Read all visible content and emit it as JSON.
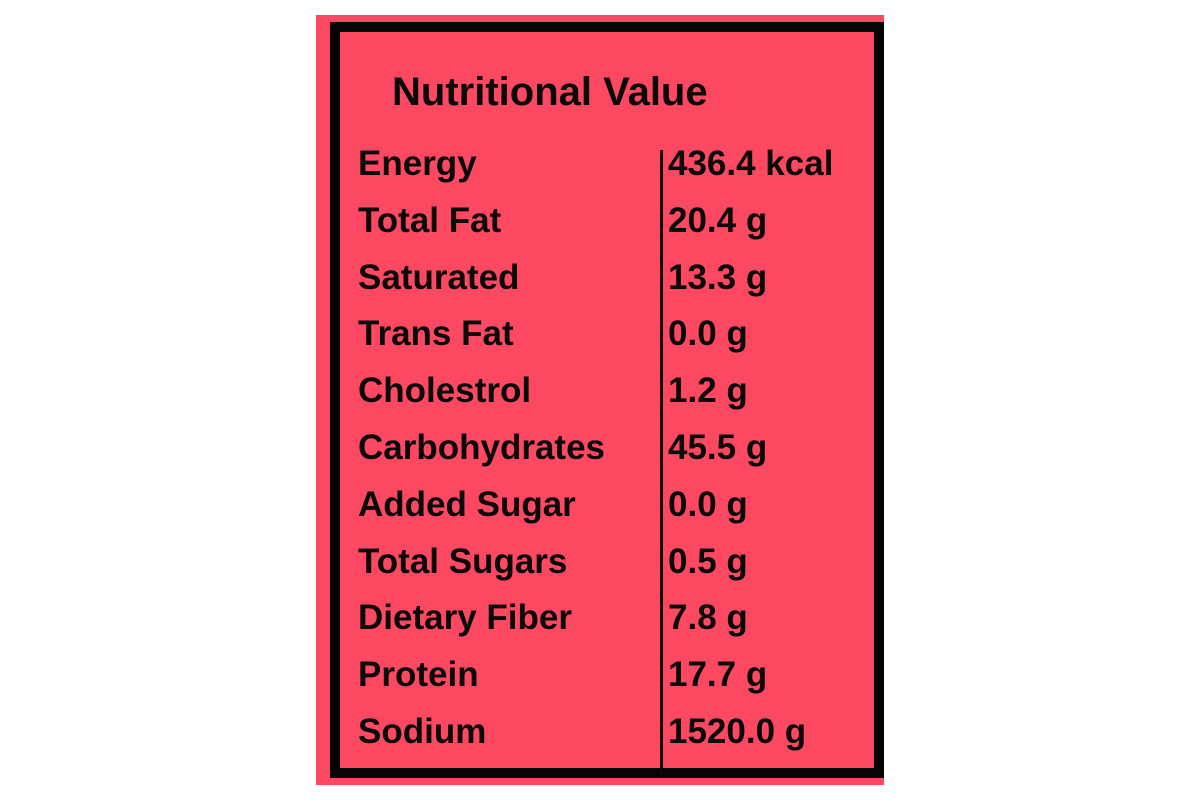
{
  "title": "Nutritional Value",
  "colors": {
    "background": "#fd4862",
    "border": "#050505",
    "text": "#0a0a0a"
  },
  "rows": [
    {
      "label": "Energy",
      "value": "436.4 kcal"
    },
    {
      "label": "Total Fat",
      "value": "20.4 g"
    },
    {
      "label": "Saturated",
      "value": "13.3 g"
    },
    {
      "label": "Trans Fat",
      "value": "0.0 g"
    },
    {
      "label": "Cholestrol",
      "value": "1.2 g"
    },
    {
      "label": "Carbohydrates",
      "value": "45.5 g"
    },
    {
      "label": "Added Sugar",
      "value": "0.0 g"
    },
    {
      "label": "Total Sugars",
      "value": "0.5 g"
    },
    {
      "label": "Dietary Fiber",
      "value": "7.8 g"
    },
    {
      "label": "Protein",
      "value": "17.7 g"
    },
    {
      "label": "Sodium",
      "value": "1520.0 g"
    }
  ]
}
